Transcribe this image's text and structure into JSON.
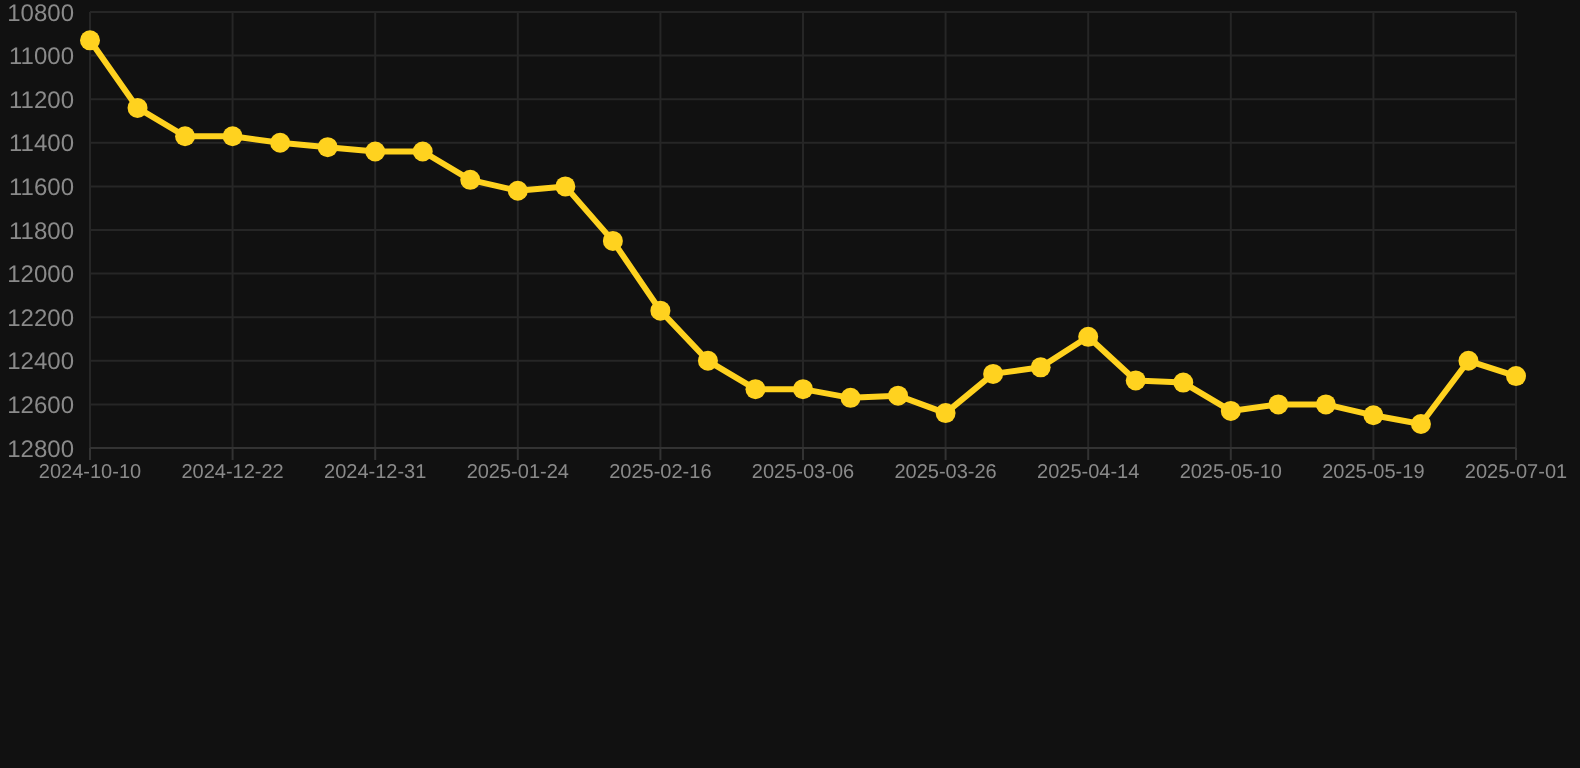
{
  "chart_data": {
    "type": "line",
    "categories": [
      "2024-10-10",
      null,
      null,
      "2024-12-22",
      null,
      null,
      "2024-12-31",
      null,
      null,
      "2025-01-24",
      null,
      null,
      "2025-02-16",
      null,
      null,
      "2025-03-06",
      null,
      null,
      "2025-03-26",
      null,
      null,
      "2025-04-14",
      null,
      null,
      "2025-05-10",
      null,
      null,
      "2025-05-19",
      null,
      null,
      "2025-07-01"
    ],
    "series": [
      {
        "color": "#ffd21f",
        "values": [
          10930,
          11240,
          11370,
          11370,
          11400,
          11420,
          11440,
          11440,
          11570,
          11620,
          11600,
          11850,
          12170,
          12400,
          12530,
          12530,
          12570,
          12560,
          12640,
          12460,
          12430,
          12290,
          12490,
          12500,
          12630,
          12600,
          12600,
          12650,
          12690,
          12400,
          12470
        ]
      }
    ],
    "ylim": [
      12800,
      10800
    ],
    "yticks": [
      10800,
      11000,
      11200,
      11400,
      11600,
      11800,
      12000,
      12200,
      12400,
      12600,
      12800
    ],
    "grid": true,
    "marker": "circle",
    "legend": false
  }
}
